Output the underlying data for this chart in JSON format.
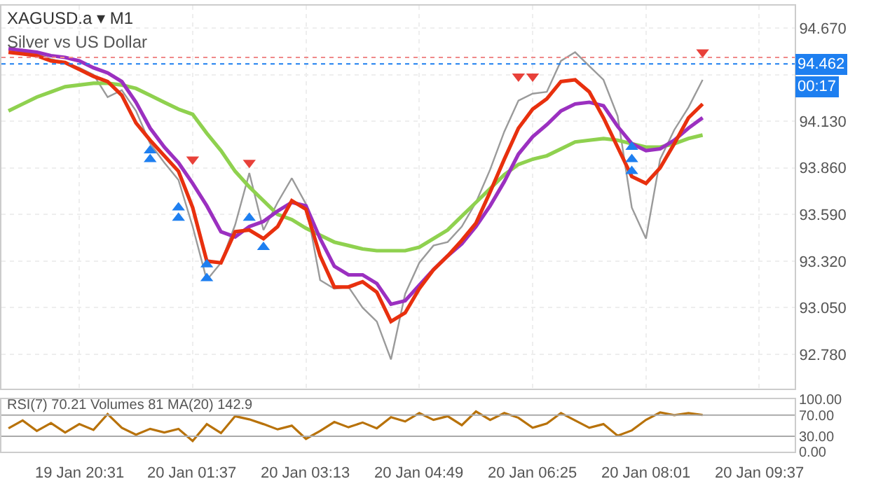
{
  "chart_data": [
    {
      "type": "line",
      "title": "XAGUSD.a ▾ M1",
      "subtitle": "Silver vs US Dollar",
      "categories": [
        null,
        null,
        null,
        null,
        null,
        "19 Jan 20:31",
        null,
        null,
        null,
        null,
        null,
        null,
        null,
        "20 Jan 01:37",
        null,
        null,
        null,
        null,
        null,
        null,
        null,
        "20 Jan 03:13",
        null,
        null,
        null,
        null,
        null,
        null,
        null,
        "20 Jan 04:49",
        null,
        null,
        null,
        null,
        null,
        null,
        null,
        "20 Jan 06:25",
        null,
        null,
        null,
        null,
        null,
        null,
        null,
        "20 Jan 08:01",
        null,
        null,
        null,
        null,
        null,
        null,
        null,
        "20 Jan 09:37",
        null,
        null
      ],
      "ylim": [
        92.58,
        94.8
      ],
      "yticks": [
        {
          "value": 92.78,
          "label": "92.780"
        },
        {
          "value": 93.05,
          "label": "93.050"
        },
        {
          "value": 93.32,
          "label": "93.320"
        },
        {
          "value": 93.59,
          "label": "93.590"
        },
        {
          "value": 93.86,
          "label": "93.860"
        },
        {
          "value": 94.13,
          "label": "94.130"
        },
        {
          "value": 94.4,
          "label": null
        },
        {
          "value": 94.67,
          "label": "94.670"
        }
      ],
      "grid": true,
      "series": [
        {
          "color": "#9a9a9a",
          "values": [
            94.55,
            94.53,
            94.52,
            94.49,
            94.47,
            94.44,
            94.4,
            94.27,
            94.31,
            94.19,
            94.0,
            93.89,
            93.79,
            93.52,
            93.21,
            93.31,
            93.53,
            93.83,
            93.5,
            93.66,
            93.8,
            93.65,
            93.21,
            93.16,
            93.17,
            93.05,
            92.97,
            92.75,
            93.13,
            93.31,
            93.41,
            93.43,
            93.52,
            93.66,
            93.85,
            94.07,
            94.25,
            94.29,
            94.3,
            94.48,
            94.53,
            94.45,
            94.37,
            94.16,
            93.63,
            93.45,
            93.91,
            94.08,
            94.21,
            94.37,
            null,
            null,
            null,
            null,
            null,
            null
          ]
        },
        {
          "color": "#8fd14f",
          "values": [
            94.19,
            94.23,
            94.27,
            94.3,
            94.33,
            94.34,
            94.35,
            94.35,
            94.34,
            94.32,
            94.28,
            94.24,
            94.2,
            94.17,
            94.06,
            93.96,
            93.84,
            93.75,
            93.67,
            93.59,
            93.56,
            93.51,
            93.47,
            93.43,
            93.41,
            93.39,
            93.38,
            93.38,
            93.38,
            93.4,
            93.45,
            93.5,
            93.58,
            93.66,
            93.74,
            93.82,
            93.88,
            93.91,
            93.93,
            93.97,
            94.01,
            94.02,
            94.03,
            94.02,
            94.0,
            93.98,
            93.98,
            94.0,
            94.03,
            94.05,
            null,
            null,
            null,
            null,
            null,
            null
          ]
        },
        {
          "color": "#9b30c0",
          "values": [
            94.55,
            94.54,
            94.53,
            94.51,
            94.5,
            94.48,
            94.44,
            94.41,
            94.36,
            94.24,
            94.09,
            93.98,
            93.89,
            93.77,
            93.64,
            93.49,
            93.46,
            93.52,
            93.55,
            93.61,
            93.66,
            93.64,
            93.45,
            93.29,
            93.24,
            93.24,
            93.19,
            93.07,
            93.09,
            93.18,
            93.27,
            93.35,
            93.42,
            93.52,
            93.64,
            93.78,
            93.94,
            94.04,
            94.11,
            94.19,
            94.23,
            94.24,
            94.22,
            94.1,
            94.0,
            93.96,
            93.97,
            94.02,
            94.09,
            94.15,
            null,
            null,
            null,
            null,
            null,
            null
          ]
        },
        {
          "color": "#e8300e",
          "values": [
            94.53,
            94.52,
            94.51,
            94.48,
            94.47,
            94.43,
            94.39,
            94.36,
            94.28,
            94.12,
            94.02,
            93.93,
            93.84,
            93.63,
            93.32,
            93.31,
            93.49,
            93.5,
            93.45,
            93.52,
            93.67,
            93.62,
            93.35,
            93.17,
            93.17,
            93.2,
            93.14,
            92.97,
            93.02,
            93.16,
            93.27,
            93.35,
            93.44,
            93.54,
            93.72,
            93.91,
            94.09,
            94.2,
            94.26,
            94.36,
            94.37,
            94.3,
            94.15,
            93.98,
            93.81,
            93.77,
            93.86,
            94.0,
            94.15,
            94.23,
            null,
            null,
            null,
            null,
            null,
            null
          ]
        },
        {
          "type": "scatter",
          "marker": "triangle-up",
          "color": "#1e7ff0",
          "values": [
            null,
            null,
            null,
            null,
            null,
            null,
            null,
            null,
            null,
            null,
            93.96,
            null,
            93.63,
            null,
            93.3,
            null,
            null,
            93.57,
            null,
            null,
            null,
            null,
            null,
            null,
            null,
            null,
            null,
            null,
            null,
            null,
            null,
            null,
            null,
            null,
            null,
            null,
            null,
            null,
            null,
            null,
            null,
            null,
            null,
            null,
            93.98,
            null,
            null,
            null,
            null,
            null,
            null,
            null,
            null,
            null,
            null,
            null
          ]
        },
        {
          "type": "scatter",
          "marker": "triangle-up",
          "color": "#1e7ff0",
          "values": [
            null,
            null,
            null,
            null,
            null,
            null,
            null,
            null,
            null,
            null,
            93.91,
            null,
            93.57,
            null,
            93.22,
            null,
            null,
            null,
            93.4,
            null,
            null,
            null,
            null,
            null,
            null,
            null,
            null,
            null,
            null,
            null,
            null,
            null,
            null,
            null,
            null,
            null,
            null,
            null,
            null,
            null,
            null,
            null,
            null,
            null,
            93.91,
            null,
            null,
            null,
            null,
            null,
            null,
            null,
            null,
            null,
            null,
            null
          ]
        },
        {
          "type": "scatter",
          "marker": "triangle-up",
          "color": "#1e7ff0",
          "values": [
            null,
            null,
            null,
            null,
            null,
            null,
            null,
            null,
            null,
            null,
            null,
            null,
            null,
            null,
            null,
            null,
            null,
            null,
            null,
            null,
            null,
            null,
            null,
            null,
            null,
            null,
            null,
            null,
            null,
            null,
            null,
            null,
            null,
            null,
            null,
            null,
            null,
            null,
            null,
            null,
            null,
            null,
            null,
            null,
            93.84,
            null,
            null,
            null,
            null,
            null,
            null,
            null,
            null,
            null,
            null,
            null
          ]
        },
        {
          "type": "scatter",
          "marker": "triangle-down",
          "color": "#e8413a",
          "values": [
            null,
            null,
            null,
            null,
            null,
            null,
            null,
            null,
            null,
            null,
            null,
            null,
            null,
            93.91,
            null,
            null,
            null,
            93.89,
            null,
            null,
            null,
            null,
            null,
            null,
            null,
            null,
            null,
            null,
            null,
            null,
            null,
            null,
            null,
            null,
            null,
            null,
            94.39,
            94.39,
            null,
            null,
            null,
            null,
            null,
            null,
            null,
            null,
            null,
            null,
            null,
            94.53,
            null,
            null,
            null,
            null,
            null,
            null
          ]
        }
      ],
      "ref_lines": [
        {
          "axis": "y",
          "value": 94.5,
          "color": "#f08a8a",
          "line_style": "dotted"
        },
        {
          "axis": "y",
          "value": 94.462,
          "label": "94.462",
          "color": "#1e7ff0",
          "line_style": "dotted"
        }
      ],
      "annotations": [
        "00:17"
      ]
    },
    {
      "type": "line",
      "categories": [
        null,
        null,
        null,
        null,
        null,
        null,
        null,
        null,
        null,
        null,
        null,
        null,
        null,
        null,
        null,
        null,
        null,
        null,
        null,
        null,
        null,
        null,
        null,
        null,
        null,
        null,
        null,
        null,
        null,
        null,
        null,
        null,
        null,
        null,
        null,
        null,
        null,
        null,
        null,
        null,
        null,
        null,
        null,
        null,
        null,
        null,
        null,
        null,
        null,
        null,
        null,
        null,
        null,
        null,
        null,
        null
      ],
      "tick_labels": "y",
      "ylim": [
        0,
        100
      ],
      "yticks": [
        {
          "value": 0,
          "label": "0.00"
        },
        {
          "value": 30,
          "label": "30.00"
        },
        {
          "value": 70,
          "label": "70.00"
        },
        {
          "value": 100,
          "label": "100.00"
        }
      ],
      "series": [
        {
          "color": "#b8720a",
          "values": [
            45,
            60,
            40,
            55,
            37,
            53,
            42,
            72,
            46,
            33,
            44,
            37,
            44,
            21,
            53,
            36,
            68,
            62,
            53,
            43,
            50,
            25,
            40,
            57,
            47,
            56,
            45,
            66,
            58,
            74,
            61,
            68,
            51,
            77,
            61,
            74,
            65,
            46,
            54,
            74,
            60,
            46,
            53,
            31,
            41,
            61,
            75,
            70,
            74,
            70.21,
            null,
            null,
            null,
            null,
            null,
            null
          ]
        }
      ],
      "ref_lines": [
        {
          "axis": "y",
          "value": 30,
          "color": "#aaaaaa",
          "line_style": "solid"
        },
        {
          "axis": "y",
          "value": 70,
          "color": "#aaaaaa",
          "line_style": "solid"
        }
      ],
      "annotations": [
        "RSI(7) 70.21 Volumes 81 MA(20) 142.9"
      ]
    }
  ]
}
